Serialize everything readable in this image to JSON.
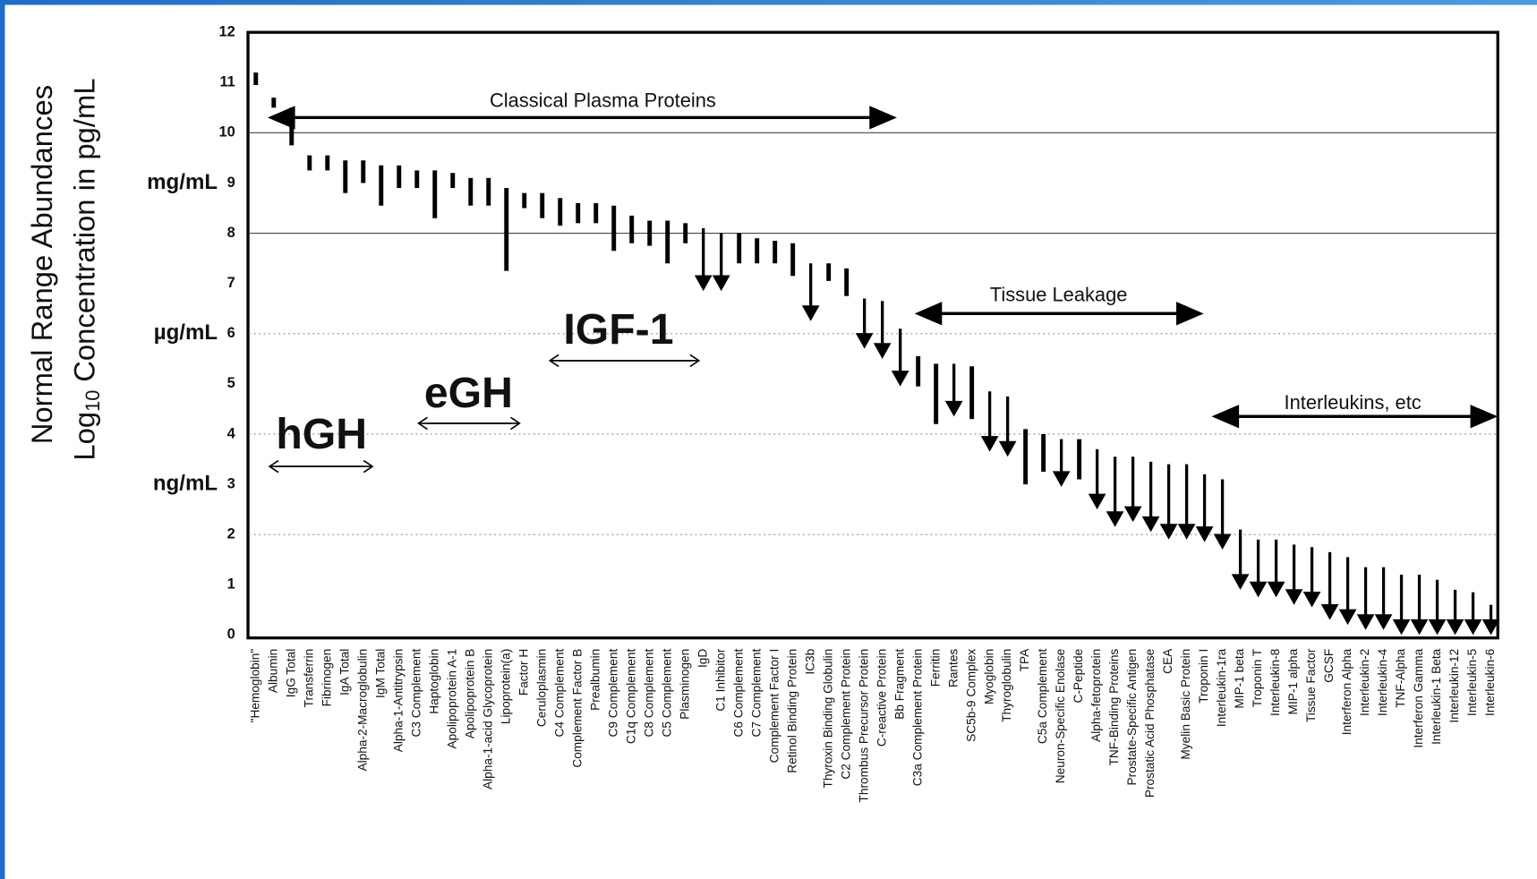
{
  "chart_data": {
    "type": "range",
    "y_label": "Normal Range Abundances",
    "y_label_2": [
      "Log",
      "10",
      "Concentration in pg/mL"
    ],
    "ylim": [
      0,
      12
    ],
    "yticks": [
      0,
      1,
      2,
      3,
      4,
      5,
      6,
      7,
      8,
      9,
      10,
      11,
      12
    ],
    "grid_lines": [
      {
        "value": 10,
        "style": "solid"
      },
      {
        "value": 8,
        "style": "solid"
      },
      {
        "value": 6,
        "style": "dotted"
      },
      {
        "value": 4,
        "style": "dotted"
      },
      {
        "value": 2,
        "style": "dotted"
      }
    ],
    "color": "#000000",
    "units": [
      {
        "text": "mg/mL",
        "y": 9
      },
      {
        "text": "µg/mL",
        "y": 6
      },
      {
        "text": "ng/mL",
        "y": 3
      }
    ],
    "annotations": [
      "Classical Plasma Proteins",
      "Tissue Leakage",
      "Interleukins, etc"
    ],
    "hormones": [
      "hGH",
      "eGH",
      "IGF-1"
    ],
    "categories": [
      "\"Hemoglobin\"",
      "Albumin",
      "IgG Total",
      "Transferrin",
      "Fibrinogen",
      "IgA Total",
      "Alpha-2-Macroglobulin",
      "IgM Total",
      "Alpha-1-Antitrypsin",
      "C3 Complement",
      "Haptoglobin",
      "Apolipoprotein A-1",
      "Apolipoprotein B",
      "Alpha-1-acid Glycoprotein",
      "Lipoprotein(a)",
      "Factor H",
      "Ceruloplasmin",
      "C4 Complement",
      "Complement Factor B",
      "Prealbumin",
      "C9 Complement",
      "C1q Complement",
      "C8 Complement",
      "C5 Complement",
      "Plasminogen",
      "IgD",
      "C1 Inhibitor",
      "C6 Complement",
      "C7 Complement",
      "Complement Factor I",
      "Retinol Binding Protein",
      "IC3b",
      "Thyroxin Binding Globulin",
      "C2 Complement Protein",
      "Thrombus Precursor Protein",
      "C-reactive Protein",
      "Bb Fragment",
      "C3a Complement Protein",
      "Ferritin",
      "Rantes",
      "SC5b-9 Complex",
      "Myoglobin",
      "Thyroglobulin",
      "TPA",
      "C5a Complement",
      "Neuron-Specific Enolase",
      "C-Peptide",
      "Alpha-fetoprotein",
      "TNF-Binding Proteins",
      "Prostate-Specific Antigen",
      "Prostatic Acid Phosphatase",
      "CEA",
      "Myelin Basic Protein",
      "Troponin I",
      "Interleukin-1ra",
      "MIP-1 beta",
      "Troponin T",
      "Interleukin-8",
      "MIP-1 alpha",
      "Tissue Factor",
      "GCSF",
      "Interferon Alpha",
      "Interleukin-2",
      "Interleukin-4",
      "TNF-Alpha",
      "Interferon Gamma",
      "Interleukin-1 Beta",
      "Interleukin-12",
      "Interleukin-5",
      "Interleukin-6"
    ],
    "high": [
      11.2,
      10.7,
      10.5,
      9.55,
      9.55,
      9.45,
      9.45,
      9.35,
      9.35,
      9.25,
      9.25,
      9.2,
      9.1,
      9.1,
      8.9,
      8.8,
      8.8,
      8.7,
      8.6,
      8.6,
      8.55,
      8.35,
      8.25,
      8.25,
      8.2,
      8.1,
      8.0,
      8.0,
      7.9,
      7.85,
      7.8,
      7.4,
      7.4,
      7.3,
      6.7,
      6.65,
      6.1,
      5.55,
      5.4,
      5.4,
      5.35,
      4.85,
      4.75,
      4.1,
      4.0,
      3.9,
      3.9,
      3.7,
      3.55,
      3.55,
      3.45,
      3.4,
      3.4,
      3.2,
      3.1,
      2.1,
      1.9,
      1.9,
      1.8,
      1.75,
      1.65,
      1.55,
      1.35,
      1.35,
      1.2,
      1.2,
      1.1,
      0.9,
      0.85,
      0.6
    ],
    "low": [
      10.95,
      10.5,
      9.75,
      9.25,
      9.25,
      8.8,
      9.0,
      8.55,
      8.9,
      8.9,
      8.3,
      8.9,
      8.55,
      8.55,
      7.25,
      8.5,
      8.3,
      8.15,
      8.2,
      8.2,
      7.65,
      7.8,
      7.75,
      7.4,
      7.8,
      6.85,
      6.85,
      7.4,
      7.4,
      7.4,
      7.15,
      6.25,
      7.05,
      6.75,
      5.7,
      5.5,
      4.95,
      4.95,
      4.2,
      4.35,
      4.3,
      3.65,
      3.55,
      3.0,
      3.25,
      2.95,
      3.1,
      2.5,
      2.15,
      2.25,
      2.05,
      1.9,
      1.9,
      1.85,
      1.7,
      0.9,
      0.75,
      0.75,
      0.6,
      0.55,
      0.3,
      0.2,
      0.1,
      0.1,
      0,
      0,
      0,
      0,
      0,
      0
    ],
    "arrow": [
      false,
      false,
      false,
      false,
      false,
      false,
      false,
      false,
      false,
      false,
      false,
      false,
      false,
      false,
      false,
      false,
      false,
      false,
      false,
      false,
      false,
      false,
      false,
      false,
      false,
      true,
      true,
      false,
      false,
      false,
      false,
      true,
      false,
      false,
      true,
      true,
      true,
      false,
      false,
      true,
      false,
      true,
      true,
      false,
      false,
      true,
      false,
      true,
      true,
      true,
      true,
      true,
      true,
      true,
      true,
      true,
      true,
      true,
      true,
      true,
      true,
      true,
      true,
      true,
      true,
      true,
      true,
      true,
      true,
      true
    ]
  }
}
